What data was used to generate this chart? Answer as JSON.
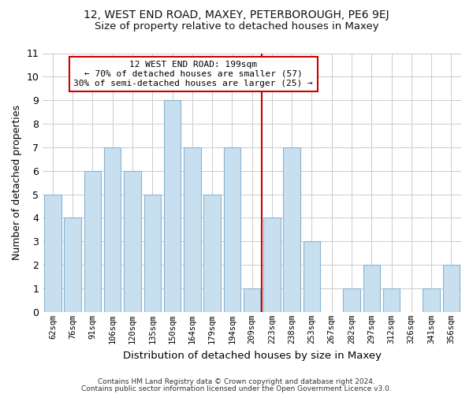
{
  "title": "12, WEST END ROAD, MAXEY, PETERBOROUGH, PE6 9EJ",
  "subtitle": "Size of property relative to detached houses in Maxey",
  "xlabel": "Distribution of detached houses by size in Maxey",
  "ylabel": "Number of detached properties",
  "bin_labels": [
    "62sqm",
    "76sqm",
    "91sqm",
    "106sqm",
    "120sqm",
    "135sqm",
    "150sqm",
    "164sqm",
    "179sqm",
    "194sqm",
    "209sqm",
    "223sqm",
    "238sqm",
    "253sqm",
    "267sqm",
    "282sqm",
    "297sqm",
    "312sqm",
    "326sqm",
    "341sqm",
    "356sqm"
  ],
  "bar_heights": [
    5,
    4,
    6,
    7,
    6,
    5,
    9,
    7,
    5,
    7,
    1,
    4,
    7,
    3,
    0,
    1,
    2,
    1,
    0,
    1,
    2
  ],
  "bar_color": "#c8dff0",
  "bar_edge_color": "#8ab4d0",
  "property_line_x": 10.5,
  "annotation_line1": "12 WEST END ROAD: 199sqm",
  "annotation_line2": "← 70% of detached houses are smaller (57)",
  "annotation_line3": "30% of semi-detached houses are larger (25) →",
  "annotation_box_color": "#ffffff",
  "annotation_box_edge": "#cc0000",
  "vline_color": "#cc0000",
  "ylim": [
    0,
    11
  ],
  "yticks": [
    0,
    1,
    2,
    3,
    4,
    5,
    6,
    7,
    8,
    9,
    10,
    11
  ],
  "grid_color": "#cccccc",
  "footer1": "Contains HM Land Registry data © Crown copyright and database right 2024.",
  "footer2": "Contains public sector information licensed under the Open Government Licence v3.0.",
  "bg_color": "#ffffff",
  "title_fontsize": 10,
  "subtitle_fontsize": 9.5
}
